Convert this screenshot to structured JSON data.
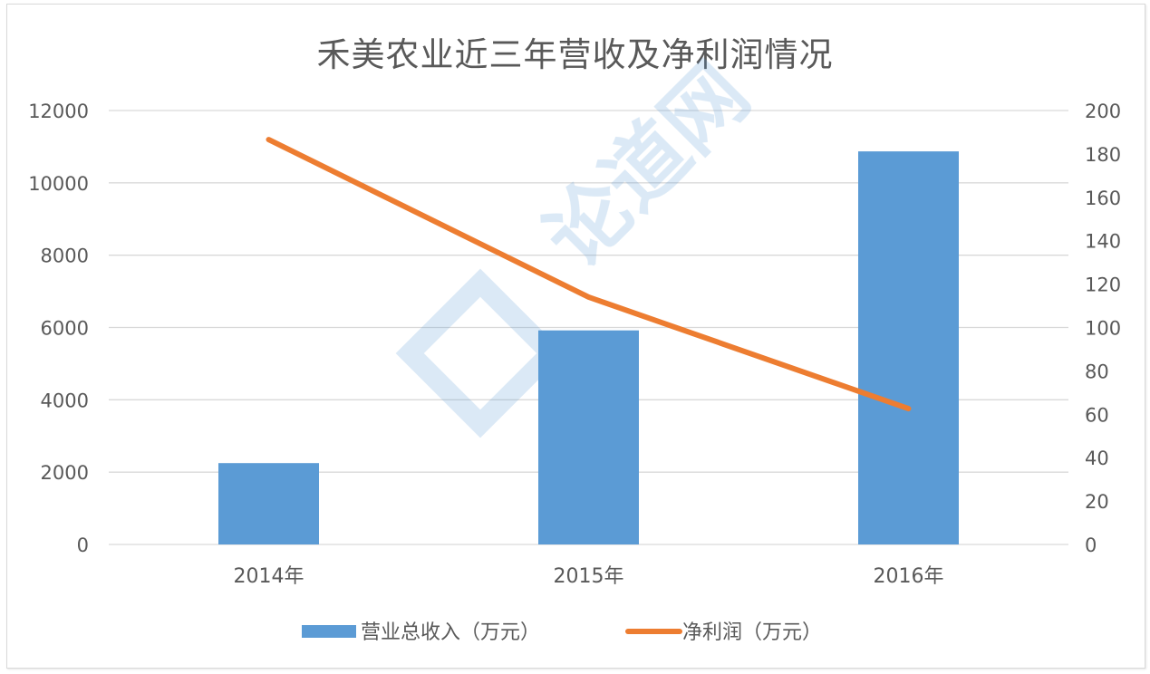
{
  "chart_data": {
    "type": "bar+line",
    "title": "禾美农业近三年营收及净利润情况",
    "categories": [
      "2014年",
      "2015年",
      "2016年"
    ],
    "series": [
      {
        "name": "营业总收入（万元）",
        "type": "bar",
        "axis": "left",
        "color": "#5b9bd5",
        "values": [
          2250,
          5920,
          10870
        ]
      },
      {
        "name": "净利润（万元）",
        "type": "line",
        "axis": "right",
        "color": "#ed7d31",
        "values": [
          186.6,
          114,
          62.6
        ]
      }
    ],
    "y_left": {
      "min": 0,
      "max": 12000,
      "ticks": [
        0,
        2000,
        4000,
        6000,
        8000,
        10000,
        12000
      ]
    },
    "y_right": {
      "min": 0,
      "max": 200,
      "ticks": [
        0,
        20,
        40,
        60,
        80,
        100,
        120,
        140,
        160,
        180,
        200
      ]
    },
    "xlabel": "",
    "ylabel": "",
    "grid": true,
    "legend_position": "bottom"
  },
  "watermark": {
    "text": "论道网"
  }
}
